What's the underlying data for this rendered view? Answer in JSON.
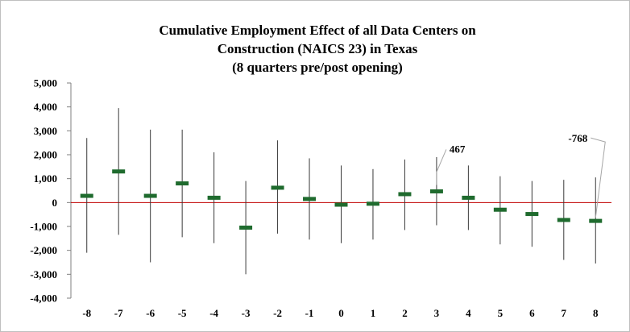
{
  "chart_data": {
    "type": "error_bar",
    "title": "Cumulative Employment Effect of all Data Centers on Construction (NAICS 23) in Texas (8 quarters pre/post opening)",
    "title_lines": [
      "Cumulative Employment Effect of all Data Centers on",
      "Construction (NAICS 23) in Texas",
      "(8 quarters pre/post opening)"
    ],
    "xlabel": "",
    "ylabel": "",
    "ylim": [
      -4000,
      5000
    ],
    "y_ticks": [
      5000,
      4000,
      3000,
      2000,
      1000,
      0,
      -1000,
      -2000,
      -3000,
      -4000
    ],
    "y_tick_labels": [
      "5,000",
      "4,000",
      "3,000",
      "2,000",
      "1,000",
      "0",
      "-1,000",
      "-2,000",
      "-3,000",
      "-4,000"
    ],
    "categories": [
      "-8",
      "-7",
      "-6",
      "-5",
      "-4",
      "-3",
      "-2",
      "-1",
      "0",
      "1",
      "2",
      "3",
      "4",
      "5",
      "6",
      "7",
      "8"
    ],
    "series": [
      {
        "name": "Cumulative employment effect",
        "values": [
          280,
          1300,
          280,
          800,
          200,
          -1050,
          620,
          150,
          -90,
          -50,
          350,
          467,
          200,
          -300,
          -480,
          -730,
          -768
        ],
        "lower": [
          -2100,
          -1350,
          -2500,
          -1450,
          -1700,
          -3000,
          -1300,
          -1550,
          -1700,
          -1550,
          -1150,
          -950,
          -1150,
          -1750,
          -1850,
          -2400,
          -2550
        ],
        "upper": [
          2700,
          3950,
          3050,
          3050,
          2100,
          900,
          2600,
          1850,
          1550,
          1400,
          1800,
          1900,
          1550,
          1100,
          900,
          950,
          1050
        ]
      }
    ],
    "zero_line": true,
    "grid": false,
    "legend": "none",
    "annotations": [
      {
        "category": "3",
        "value": 467,
        "text": "467"
      },
      {
        "category": "8",
        "value": -768,
        "text": "-768"
      }
    ],
    "colors": {
      "point": "#1f6b2e",
      "error_bar": "#3a3a3a",
      "zero_line": "#c00000",
      "axis": "#7f7f7f",
      "leader": "#a6a6a6"
    }
  }
}
